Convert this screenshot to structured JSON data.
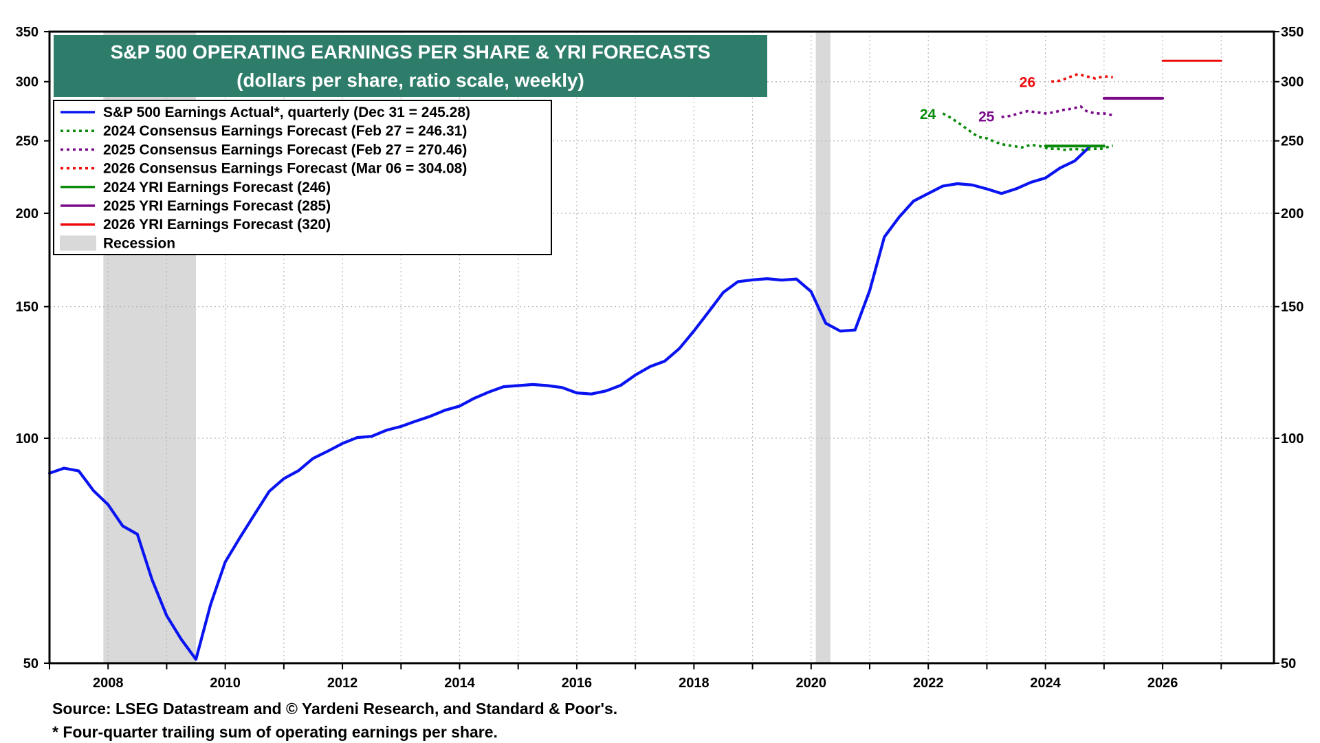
{
  "chart_data": {
    "type": "line",
    "title": "S&P 500 OPERATING EARNINGS PER SHARE & YRI FORECASTS",
    "subtitle": "(dollars per share, ratio scale, weekly)",
    "y_scale": "log",
    "ylim": [
      50,
      350
    ],
    "xlim": [
      2007.0,
      2027.9
    ],
    "y_ticks": [
      50,
      100,
      150,
      200,
      250,
      300,
      350
    ],
    "x_ticks": [
      "2008",
      "2010",
      "2012",
      "2014",
      "2016",
      "2018",
      "2020",
      "2022",
      "2024",
      "2026"
    ],
    "grid": true,
    "axes_both_sides": true,
    "legend_position": "top-left",
    "colors": {
      "actual": "#0a14f0",
      "forecast_2024": "#0a8a0a",
      "forecast_2025": "#7a0a8a",
      "forecast_2026": "#ee0a0a",
      "recession": "#d9d9d9",
      "title_box": "#2e7d6b"
    },
    "legend": [
      {
        "label": "S&P 500 Earnings Actual*, quarterly (Dec 31 = 245.28)",
        "style": "solid",
        "color": "#0a14f0"
      },
      {
        "label": "2024 Consensus Earnings Forecast (Feb 27 = 246.31)",
        "style": "dotted",
        "color": "#0a8a0a"
      },
      {
        "label": "2025 Consensus Earnings Forecast (Feb 27 = 270.46)",
        "style": "dotted",
        "color": "#7a0a8a"
      },
      {
        "label": "2026 Consensus Earnings Forecast (Mar 06 = 304.08)",
        "style": "dotted",
        "color": "#ee0a0a"
      },
      {
        "label": "2024 YRI Earnings Forecast (246)",
        "style": "solid",
        "color": "#0a8a0a"
      },
      {
        "label": "2025 YRI Earnings Forecast (285)",
        "style": "solid",
        "color": "#7a0a8a"
      },
      {
        "label": "2026 YRI Earnings Forecast (320)",
        "style": "solid",
        "color": "#ee0a0a"
      },
      {
        "label": "Recession",
        "style": "box",
        "color": "#d9d9d9"
      }
    ],
    "recessions": [
      [
        2007.92,
        2009.5
      ],
      [
        2020.08,
        2020.33
      ]
    ],
    "series": [
      {
        "key": "actual",
        "x": [
          2007.0,
          2007.25,
          2007.5,
          2007.75,
          2008.0,
          2008.25,
          2008.5,
          2008.75,
          2009.0,
          2009.25,
          2009.5,
          2009.75,
          2010.0,
          2010.25,
          2010.5,
          2010.75,
          2011.0,
          2011.25,
          2011.5,
          2011.75,
          2012.0,
          2012.25,
          2012.5,
          2012.75,
          2013.0,
          2013.25,
          2013.5,
          2013.75,
          2014.0,
          2014.25,
          2014.5,
          2014.75,
          2015.0,
          2015.25,
          2015.5,
          2015.75,
          2016.0,
          2016.25,
          2016.5,
          2016.75,
          2017.0,
          2017.25,
          2017.5,
          2017.75,
          2018.0,
          2018.25,
          2018.5,
          2018.75,
          2019.0,
          2019.25,
          2019.5,
          2019.75,
          2020.0,
          2020.25,
          2020.5,
          2020.75,
          2021.0,
          2021.25,
          2021.5,
          2021.75,
          2022.0,
          2022.25,
          2022.5,
          2022.75,
          2023.0,
          2023.25,
          2023.5,
          2023.75,
          2024.0,
          2024.25,
          2024.5,
          2024.75
        ],
        "y": [
          89.8,
          91.2,
          90.4,
          85.1,
          81.5,
          76.3,
          74.4,
          64.7,
          57.9,
          53.8,
          50.6,
          59.9,
          68.3,
          73.6,
          79.1,
          84.9,
          88.3,
          90.5,
          94.0,
          96.1,
          98.4,
          100.2,
          100.6,
          102.5,
          103.7,
          105.4,
          107.0,
          109.0,
          110.4,
          113.1,
          115.3,
          117.2,
          117.6,
          118.0,
          117.6,
          116.9,
          115.0,
          114.6,
          115.7,
          117.7,
          121.5,
          124.7,
          126.8,
          131.8,
          139.2,
          147.6,
          156.7,
          162.0,
          162.9,
          163.5,
          162.8,
          163.3,
          157.1,
          142.5,
          139.1,
          139.6,
          157.6,
          185.9,
          197.5,
          207.7,
          212.6,
          217.5,
          219.1,
          218.2,
          215.6,
          212.6,
          215.7,
          220.0,
          223.0,
          230.0,
          235.0,
          245.28
        ]
      },
      {
        "key": "c2024",
        "x": [
          2022.25,
          2022.4,
          2022.55,
          2022.7,
          2022.85,
          2023.0,
          2023.15,
          2023.3,
          2023.45,
          2023.6,
          2023.75,
          2023.9,
          2024.05,
          2024.2,
          2024.35,
          2024.5,
          2024.65,
          2024.8,
          2024.95,
          2025.15
        ],
        "y": [
          272,
          268,
          263,
          258,
          253,
          252,
          249,
          247,
          246,
          245,
          247,
          246,
          244,
          244,
          243,
          244,
          243,
          244,
          244,
          246.31
        ]
      },
      {
        "key": "c2025",
        "x": [
          2023.25,
          2023.4,
          2023.55,
          2023.7,
          2023.85,
          2024.0,
          2024.15,
          2024.3,
          2024.45,
          2024.6,
          2024.7,
          2024.85,
          2025.0,
          2025.15
        ],
        "y": [
          269,
          270,
          272,
          274,
          273,
          272,
          273,
          275,
          276,
          278,
          274,
          272,
          272,
          270.46
        ]
      },
      {
        "key": "c2026",
        "x": [
          2024.1,
          2024.25,
          2024.4,
          2024.55,
          2024.7,
          2024.85,
          2025.0,
          2025.15
        ],
        "y": [
          300,
          301,
          304,
          307,
          305,
          303,
          305,
          304.08
        ]
      },
      {
        "key": "y2024",
        "x": [
          2024.0,
          2025.0
        ],
        "y": [
          246,
          246
        ]
      },
      {
        "key": "y2025",
        "x": [
          2025.0,
          2026.0
        ],
        "y": [
          285,
          285
        ]
      },
      {
        "key": "y2026",
        "x": [
          2026.0,
          2027.0
        ],
        "y": [
          320,
          320
        ]
      }
    ],
    "annotations": [
      {
        "text": "24",
        "color": "#0a8a0a",
        "x": 2022.2,
        "y": 272
      },
      {
        "text": "25",
        "color": "#7a0a8a",
        "x": 2023.2,
        "y": 270
      },
      {
        "text": "26",
        "color": "#ee0a0a",
        "x": 2023.9,
        "y": 300
      }
    ]
  },
  "footer": {
    "source": "Source: LSEG Datastream and © Yardeni Research, and Standard & Poor's.",
    "note": "* Four-quarter trailing sum of operating earnings per share."
  }
}
